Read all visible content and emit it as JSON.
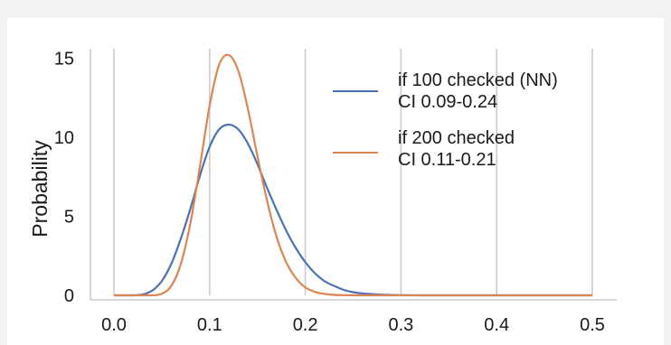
{
  "chart_data": {
    "type": "line",
    "title": "",
    "xlabel": "",
    "ylabel": "Probability",
    "xlim": [
      0.0,
      0.5
    ],
    "ylim": [
      0,
      15.6
    ],
    "x_ticks": [
      0.0,
      0.1,
      0.2,
      0.3,
      0.4,
      0.5
    ],
    "x_tick_labels": [
      "0.0",
      "0.1",
      "0.2",
      "0.3",
      "0.4",
      "0.5"
    ],
    "y_ticks": [
      0,
      5,
      10,
      15
    ],
    "y_tick_labels": [
      "0",
      "5",
      "10",
      "15"
    ],
    "grid": "vertical",
    "legend_position": "top-right",
    "series": [
      {
        "name": "if 100 checked (NN)",
        "ci_label": "CI 0.09-0.24",
        "color": "#4c72b0",
        "x": [
          0.0,
          0.01,
          0.02,
          0.03,
          0.04,
          0.05,
          0.06,
          0.07,
          0.08,
          0.09,
          0.1,
          0.11,
          0.12,
          0.13,
          0.14,
          0.15,
          0.16,
          0.17,
          0.18,
          0.19,
          0.2,
          0.21,
          0.22,
          0.23,
          0.24,
          0.25,
          0.26,
          0.27,
          0.28,
          0.29,
          0.3,
          0.32,
          0.34,
          0.36,
          0.4,
          0.45,
          0.5
        ],
        "y": [
          0.0,
          0.0,
          0.0,
          0.05,
          0.3,
          0.9,
          2.0,
          3.6,
          5.5,
          7.6,
          9.4,
          10.5,
          10.8,
          10.5,
          9.6,
          8.3,
          6.8,
          5.4,
          4.1,
          3.0,
          2.1,
          1.4,
          0.9,
          0.6,
          0.35,
          0.2,
          0.12,
          0.07,
          0.04,
          0.02,
          0.01,
          0.0,
          0.0,
          0.0,
          0.0,
          0.0,
          0.0
        ]
      },
      {
        "name": "if 200 checked",
        "ci_label": "CI 0.11-0.21",
        "color": "#dd8452",
        "x": [
          0.0,
          0.01,
          0.02,
          0.03,
          0.04,
          0.05,
          0.06,
          0.07,
          0.08,
          0.09,
          0.1,
          0.11,
          0.12,
          0.13,
          0.14,
          0.15,
          0.16,
          0.17,
          0.18,
          0.19,
          0.2,
          0.21,
          0.22,
          0.23,
          0.24,
          0.25,
          0.26,
          0.28,
          0.3,
          0.35,
          0.4,
          0.45,
          0.5
        ],
        "y": [
          0.0,
          0.0,
          0.0,
          0.0,
          0.0,
          0.1,
          0.6,
          2.0,
          4.6,
          8.2,
          12.0,
          14.6,
          15.2,
          14.2,
          11.8,
          8.8,
          6.0,
          3.7,
          2.1,
          1.1,
          0.5,
          0.22,
          0.09,
          0.03,
          0.01,
          0.0,
          0.0,
          0.0,
          0.0,
          0.0,
          0.0,
          0.0,
          0.0
        ]
      }
    ]
  }
}
